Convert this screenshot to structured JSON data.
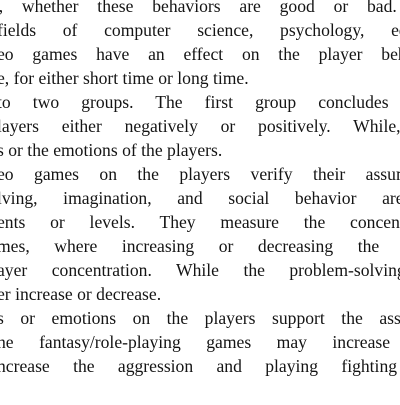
{
  "document": {
    "lines": [
      "rs, whether these behaviors are good or bad. T",
      "fields of computer science, psychology, educat",
      "eo games have an effect on the player behavio",
      "e, for either short time or long time.",
      "to two groups. The first group concludes that",
      "layers either negatively or positively. While, th",
      "s or the emotions of the players.",
      "eo games on the players verify their assumptio",
      "lving, imagination, and social behavior are c",
      "ents or levels. They measure the concentratio",
      "mes, where increasing or decreasing the spati",
      "ayer concentration. While the problem-solving s",
      "er increase or decrease.",
      "s or emotions on the players support the assumpt",
      "he fantasy/role-playing games may increase the",
      "ncrease the aggression and playing fighting ga",
      ""
    ]
  }
}
